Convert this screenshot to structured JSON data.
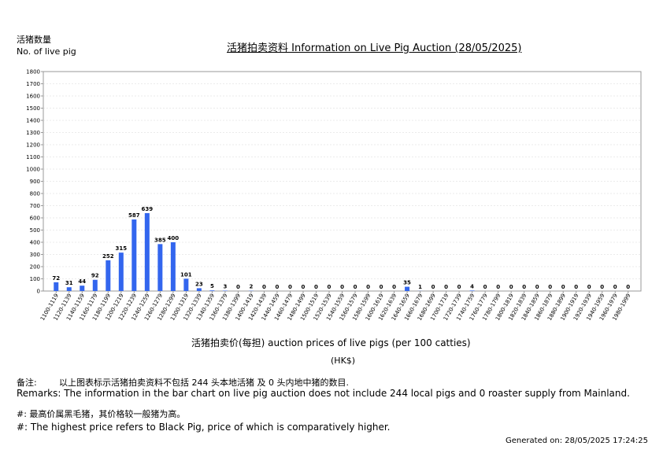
{
  "header": {
    "ylabel_cn": "活猪数量",
    "ylabel_en": "No. of live pig",
    "title": "活猪拍卖资料 Information on Live Pig Auction (28/05/2025)"
  },
  "axis": {
    "xlabel": "活猪拍卖价(每担) auction prices of live pigs (per 100 catties)",
    "xunit": "(HK$)"
  },
  "remarks": {
    "cn_label": "备注:",
    "cn_text": "以上图表标示活猪拍卖资料不包括 244 头本地活猪 及 0 头内地中猪的数目.",
    "en_text": "Remarks: The information in the bar chart on live pig auction does not include 244 local pigs and 0 roaster supply from Mainland.",
    "hash_cn": "#: 最高价属黑毛猪，其价格较一般猪为高。",
    "hash_en": "#: The highest price refers to Black Pig, price of which is comparatively higher."
  },
  "footer": {
    "generated": "Generated on: 28/05/2025 17:24:25"
  },
  "colors": {
    "bar": "#3366ee",
    "grid": "#d8d8d8",
    "axis": "#999999"
  },
  "chart_data": {
    "type": "bar",
    "categories": [
      "1100-1119",
      "1120-1139",
      "1140-1159",
      "1160-1179",
      "1180-1199",
      "1200-1219",
      "1220-1239",
      "1240-1259",
      "1260-1279",
      "1280-1299",
      "1300-1319",
      "1320-1339",
      "1340-1359",
      "1360-1379",
      "1380-1399",
      "1400-1419",
      "1420-1439",
      "1440-1459",
      "1460-1479",
      "1480-1499",
      "1500-1519",
      "1520-1539",
      "1540-1559",
      "1560-1579",
      "1580-1599",
      "1600-1619",
      "1620-1639",
      "1640-1659",
      "1660-1679",
      "1680-1699",
      "1700-1719",
      "1720-1739",
      "1740-1759",
      "1760-1779",
      "1780-1799",
      "1800-1819",
      "1820-1839",
      "1840-1859",
      "1860-1879",
      "1880-1899",
      "1900-1919",
      "1920-1939",
      "1940-1959",
      "1960-1979",
      "1980-1999"
    ],
    "values": [
      72,
      31,
      44,
      92,
      252,
      315,
      587,
      639,
      385,
      400,
      101,
      23,
      5,
      3,
      0,
      2,
      0,
      0,
      0,
      0,
      0,
      0,
      0,
      0,
      0,
      0,
      0,
      35,
      1,
      0,
      0,
      0,
      4,
      0,
      0,
      0,
      0,
      0,
      0,
      0,
      0,
      0,
      0,
      0,
      0
    ],
    "ylim": [
      0,
      1800
    ],
    "yticks": [
      0,
      100,
      200,
      300,
      400,
      500,
      600,
      700,
      800,
      900,
      1000,
      1100,
      1200,
      1300,
      1400,
      1500,
      1600,
      1700,
      1800
    ],
    "grid": true
  }
}
